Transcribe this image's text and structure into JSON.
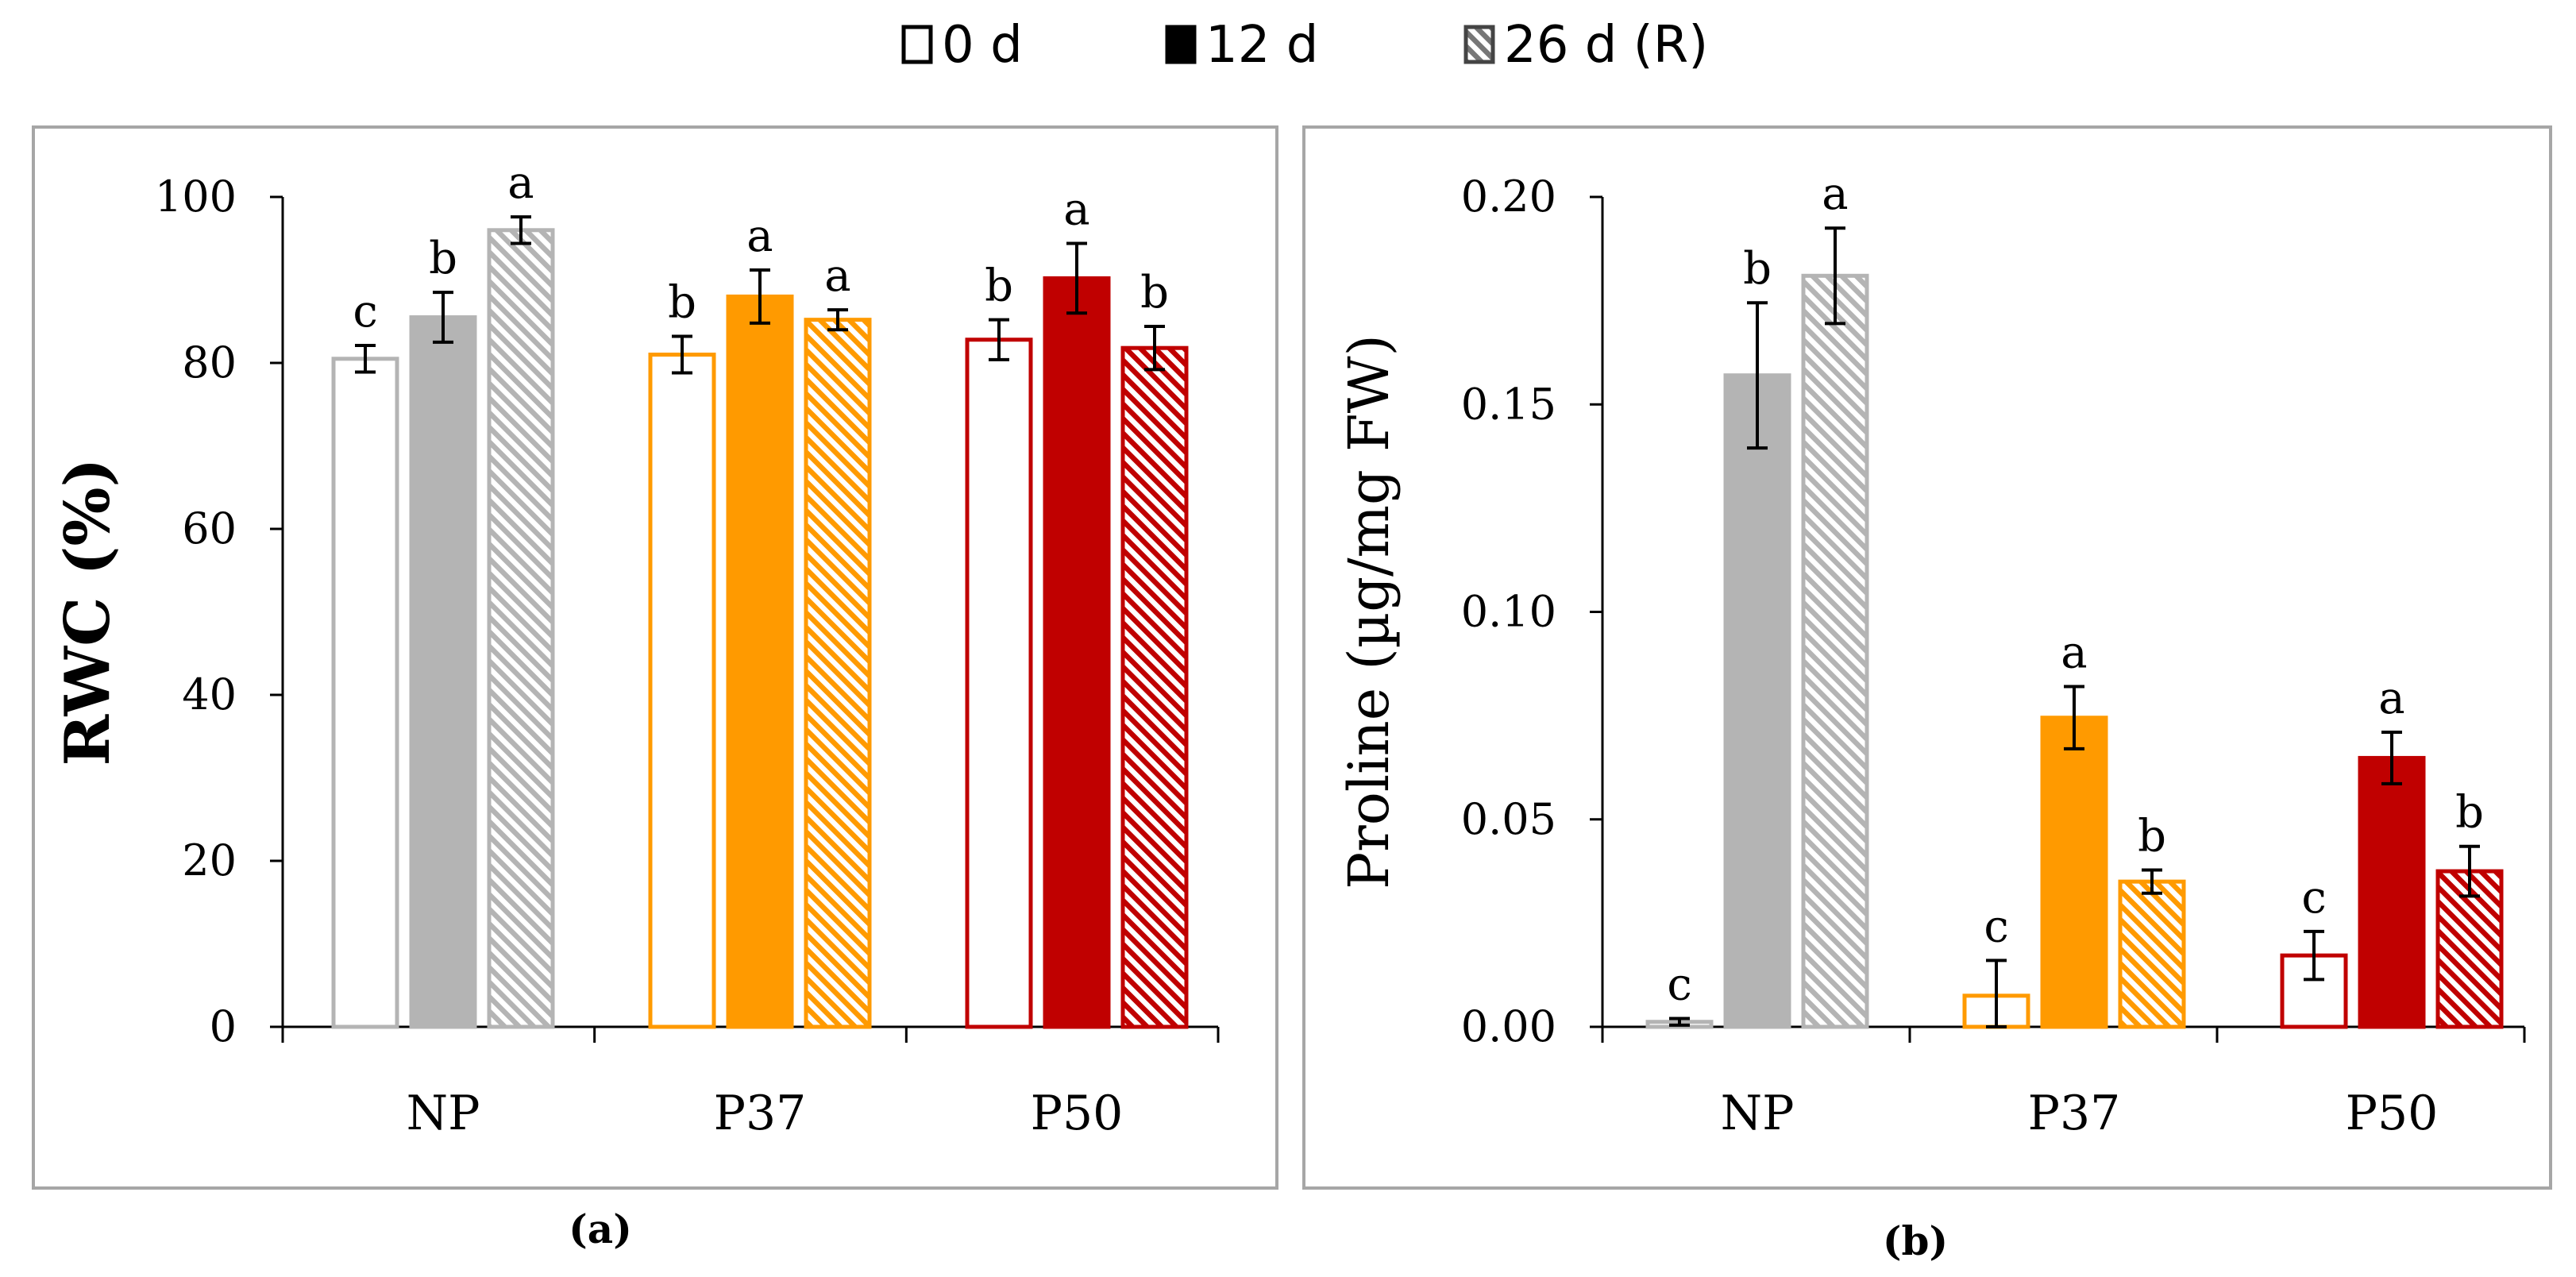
{
  "legend": {
    "position": "top-center",
    "entries": [
      {
        "label": "0 d",
        "style": "open"
      },
      {
        "label": "12 d",
        "style": "solid"
      },
      {
        "label": "26 d (R)",
        "style": "hatched"
      }
    ]
  },
  "colors": {
    "NP": "#b4b4b4",
    "P37": "#ff9a00",
    "P50": "#c00000",
    "axis": "#000000",
    "frame": "#a6a6a6"
  },
  "chart_data": [
    {
      "type": "bar",
      "panel_label": "(a)",
      "ylabel": "RWC (%)",
      "ylabel_bold": true,
      "ylim": [
        0,
        100
      ],
      "yticks": [
        "0",
        "20",
        "40",
        "60",
        "80",
        "100"
      ],
      "ytick_values": [
        0,
        20,
        40,
        60,
        80,
        100
      ],
      "categories": [
        "NP",
        "P37",
        "P50"
      ],
      "series": [
        {
          "name": "0 d",
          "style": "open",
          "values": [
            80.5,
            81,
            82.8
          ],
          "errors": [
            1.6,
            2.2,
            2.4
          ],
          "letters": [
            "c",
            "b",
            "b"
          ]
        },
        {
          "name": "12 d",
          "style": "solid",
          "values": [
            85.5,
            88,
            90.2
          ],
          "errors": [
            3,
            3.2,
            4.2
          ],
          "letters": [
            "b",
            "a",
            "a"
          ]
        },
        {
          "name": "26 d (R)",
          "style": "hatched",
          "values": [
            96,
            85.2,
            81.8
          ],
          "errors": [
            1.6,
            1.2,
            2.6
          ],
          "letters": [
            "a",
            "a",
            "b"
          ]
        }
      ]
    },
    {
      "type": "bar",
      "panel_label": "(b)",
      "ylabel": "Proline (µg/mg FW)",
      "ylabel_bold": false,
      "ylim": [
        0,
        0.2
      ],
      "yticks": [
        "0.00",
        "0.05",
        "0.10",
        "0.15",
        "0.20"
      ],
      "ytick_values": [
        0,
        0.05,
        0.1,
        0.15,
        0.2
      ],
      "categories": [
        "NP",
        "P37",
        "P50"
      ],
      "series": [
        {
          "name": "0 d",
          "style": "open",
          "values": [
            0.0012,
            0.0075,
            0.0172
          ],
          "errors": [
            0.0008,
            0.0085,
            0.0058
          ],
          "letters": [
            "c",
            "c",
            "c"
          ]
        },
        {
          "name": "12 d",
          "style": "solid",
          "values": [
            0.157,
            0.0745,
            0.0648
          ],
          "errors": [
            0.0175,
            0.0075,
            0.0062
          ],
          "letters": [
            "b",
            "a",
            "a"
          ]
        },
        {
          "name": "26 d (R)",
          "style": "hatched",
          "values": [
            0.181,
            0.035,
            0.0375
          ],
          "errors": [
            0.0115,
            0.0028,
            0.006
          ],
          "letters": [
            "a",
            "b",
            "b"
          ]
        }
      ]
    }
  ]
}
